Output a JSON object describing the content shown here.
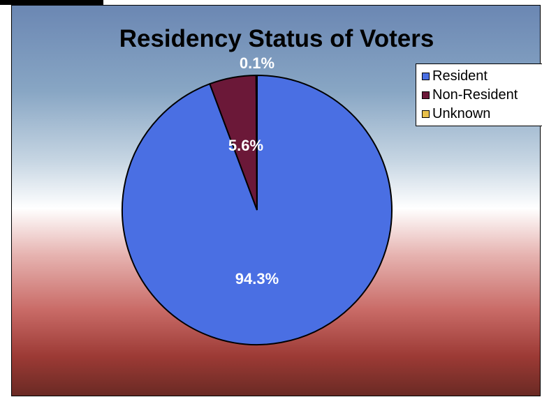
{
  "chart_data": {
    "type": "pie",
    "title": "Residency Status of Voters",
    "categories": [
      "Resident",
      "Non-Resident",
      "Unknown"
    ],
    "values": [
      94.3,
      5.6,
      0.1
    ],
    "data_labels": [
      "94.3%",
      "5.6%",
      "0.1%"
    ],
    "colors": [
      "#4a6fe3",
      "#6b1838",
      "#e8c04a"
    ],
    "legend": "right",
    "start_angle": "top, clockwise"
  }
}
